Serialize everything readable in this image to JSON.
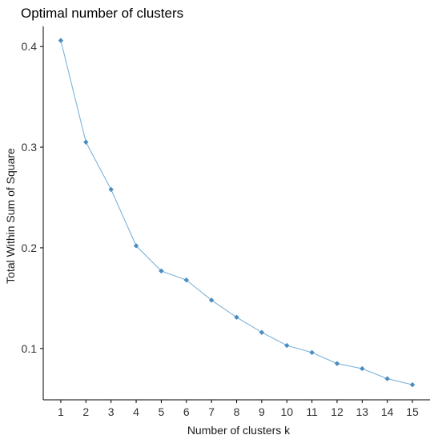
{
  "chart_data": {
    "type": "line",
    "title": "Optimal number of clusters",
    "xlabel": "Number of clusters k",
    "ylabel": "Total Within Sum of Square",
    "x": [
      1,
      2,
      3,
      4,
      5,
      6,
      7,
      8,
      9,
      10,
      11,
      12,
      13,
      14,
      15
    ],
    "series": [
      {
        "values": [
          0.406,
          0.305,
          0.258,
          0.202,
          0.177,
          0.168,
          0.148,
          0.131,
          0.116,
          0.103,
          0.096,
          0.085,
          0.08,
          0.07,
          0.064
        ]
      }
    ],
    "xticks": [
      "1",
      "2",
      "3",
      "4",
      "5",
      "6",
      "7",
      "8",
      "9",
      "10",
      "11",
      "12",
      "13",
      "14",
      "15"
    ],
    "yticks": [
      "0.1",
      "0.2",
      "0.3",
      "0.4"
    ],
    "ytick_values": [
      0.1,
      0.2,
      0.3,
      0.4
    ],
    "xlim": [
      0.3,
      15.7
    ],
    "ylim": [
      0.049,
      0.42
    ],
    "grid": false,
    "legend": "none",
    "colors": {
      "series": "#4a8cbf",
      "line": "#7fb3d8",
      "axis": "#000000"
    }
  }
}
